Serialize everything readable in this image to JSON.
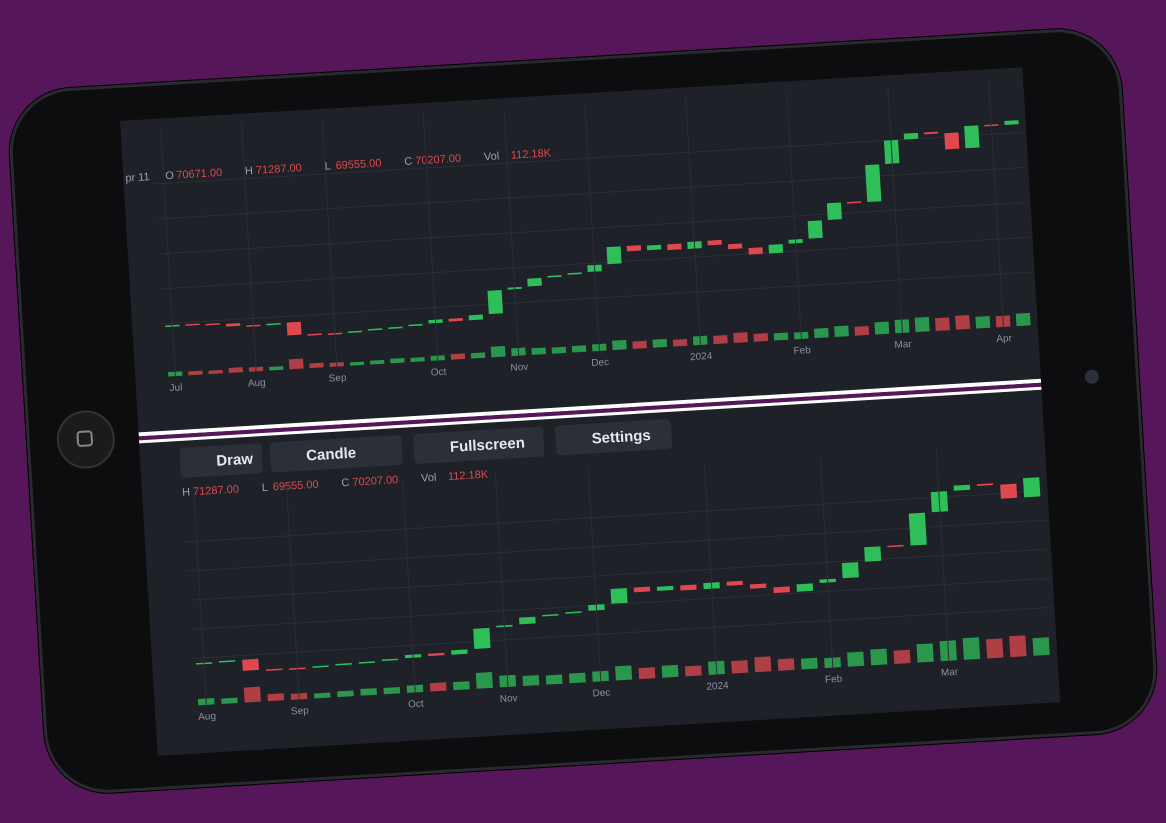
{
  "headers": [
    {
      "date": "pr 11",
      "items": [
        {
          "k": "O",
          "v": "70671.00"
        },
        {
          "k": "H",
          "v": "71287.00"
        },
        {
          "k": "L",
          "v": "69555.00"
        },
        {
          "k": "C",
          "v": "70207.00"
        },
        {
          "k": "Vol",
          "v": "112.18K"
        }
      ]
    },
    {
      "items": [
        {
          "k": "H",
          "v": "71287.00"
        },
        {
          "k": "L",
          "v": "69555.00"
        },
        {
          "k": "C",
          "v": "70207.00"
        },
        {
          "k": "Vol",
          "v": "112.18K"
        }
      ]
    }
  ],
  "toolbar": {
    "buttons": [
      "Draw",
      "Candle",
      "Fullscreen",
      "Settings"
    ]
  },
  "chart_data": [
    {
      "type": "candlestick",
      "categories": [
        "Jul",
        null,
        null,
        null,
        "Aug",
        null,
        null,
        null,
        "Sep",
        null,
        null,
        null,
        null,
        "Oct",
        null,
        null,
        null,
        "Nov",
        null,
        null,
        null,
        "Dec",
        null,
        null,
        null,
        null,
        "2024",
        null,
        null,
        null,
        null,
        "Feb",
        null,
        null,
        null,
        null,
        "Mar",
        null,
        null,
        null,
        null,
        "Apr",
        null
      ],
      "values": [
        30500,
        30300,
        30000,
        29300,
        29200,
        29400,
        26100,
        26000,
        25900,
        26200,
        26500,
        26600,
        27000,
        27900,
        27200,
        28500,
        34500,
        35000,
        37000,
        37400,
        37800,
        39500,
        43900,
        42500,
        43700,
        42200,
        44000,
        42800,
        41500,
        39800,
        42000,
        43000,
        47500,
        51800,
        51500,
        61000,
        67000,
        68500,
        68000,
        63800,
        69500,
        69200,
        70207
      ],
      "volume": [
        40,
        35,
        30,
        45,
        38,
        32,
        90,
        42,
        36,
        30,
        34,
        40,
        38,
        44,
        50,
        48,
        95,
        70,
        60,
        55,
        58,
        62,
        85,
        66,
        72,
        60,
        80,
        75,
        90,
        70,
        65,
        60,
        85,
        95,
        80,
        110,
        120,
        130,
        115,
        125,
        105,
        100,
        112
      ],
      "ylim": [
        22000,
        76000
      ],
      "volume_ylim": [
        0,
        180
      ],
      "up_color": "#2fbf5a",
      "down_color": "#e0484f"
    },
    {
      "type": "candlestick",
      "categories": [
        "Aug",
        null,
        null,
        null,
        "Sep",
        null,
        null,
        null,
        null,
        "Oct",
        null,
        null,
        null,
        "Nov",
        null,
        null,
        null,
        "Dec",
        null,
        null,
        null,
        null,
        "2024",
        null,
        null,
        null,
        null,
        "Feb",
        null,
        null,
        null,
        null,
        "Mar",
        null,
        null,
        null,
        null
      ],
      "values": [
        29200,
        29400,
        26100,
        26000,
        25900,
        26200,
        26500,
        26600,
        27000,
        27900,
        27200,
        28500,
        34500,
        35000,
        37000,
        37400,
        37800,
        39500,
        43900,
        42500,
        43700,
        42200,
        44000,
        42800,
        41500,
        39800,
        42000,
        43000,
        47500,
        51800,
        51500,
        61000,
        67000,
        68500,
        68000,
        63800,
        69500
      ],
      "volume": [
        38,
        32,
        90,
        42,
        36,
        30,
        34,
        40,
        38,
        44,
        50,
        48,
        95,
        70,
        60,
        55,
        58,
        62,
        85,
        66,
        72,
        60,
        80,
        75,
        90,
        70,
        65,
        60,
        85,
        95,
        80,
        110,
        120,
        130,
        115,
        125,
        105
      ],
      "ylim": [
        22000,
        74000
      ],
      "volume_ylim": [
        0,
        180
      ],
      "up_color": "#2fbf5a",
      "down_color": "#e0484f"
    }
  ]
}
